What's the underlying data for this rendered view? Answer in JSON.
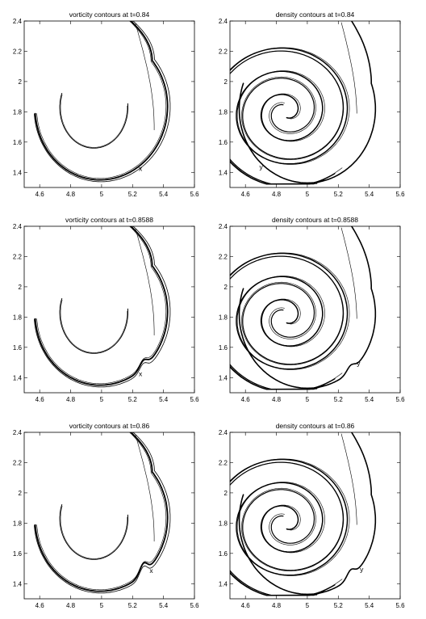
{
  "chart_data": [
    {
      "type": "line",
      "kind": "vorticity",
      "title": "vorticity contours at t=0.84",
      "xlim": [
        4.5,
        5.6
      ],
      "ylim": [
        1.3,
        2.4
      ],
      "xticks": [
        "4.6",
        "4.8",
        "5",
        "5.2",
        "5.4",
        "5.6"
      ],
      "yticks": [
        "1.4",
        "1.6",
        "1.8",
        "2",
        "2.2",
        "2.4"
      ],
      "marker": {
        "label": "x",
        "x": 5.24,
        "y": 1.41
      },
      "kink": 0
    },
    {
      "type": "line",
      "kind": "density",
      "title": "density contours at t=0.84",
      "xlim": [
        4.5,
        5.6
      ],
      "ylim": [
        1.3,
        2.4
      ],
      "xticks": [
        "4.6",
        "4.8",
        "5",
        "5.2",
        "5.4",
        "5.6"
      ],
      "yticks": [
        "1.4",
        "1.6",
        "1.8",
        "2",
        "2.2",
        "2.4"
      ],
      "marker": {
        "label": "y",
        "x": 4.69,
        "y": 1.42
      },
      "kink": 0
    },
    {
      "type": "line",
      "kind": "vorticity",
      "title": "vorticity contours at t=0.8588",
      "xlim": [
        4.5,
        5.6
      ],
      "ylim": [
        1.3,
        2.4
      ],
      "xticks": [
        "4.6",
        "4.8",
        "5",
        "5.2",
        "5.4",
        "5.6"
      ],
      "yticks": [
        "1.4",
        "1.6",
        "1.8",
        "2",
        "2.2",
        "2.4"
      ],
      "marker": {
        "label": "x",
        "x": 5.24,
        "y": 1.41
      },
      "kink": 1
    },
    {
      "type": "line",
      "kind": "density",
      "title": "density contours at t=0.8588",
      "xlim": [
        4.5,
        5.6
      ],
      "ylim": [
        1.3,
        2.4
      ],
      "xticks": [
        "4.6",
        "4.8",
        "5",
        "5.2",
        "5.4",
        "5.6"
      ],
      "yticks": [
        "1.4",
        "1.6",
        "1.8",
        "2",
        "2.2",
        "2.4"
      ],
      "marker": {
        "label": "y",
        "x": 5.32,
        "y": 1.48
      },
      "kink": 1
    },
    {
      "type": "line",
      "kind": "vorticity",
      "title": "vorticity contours at t=0.86",
      "xlim": [
        4.5,
        5.6
      ],
      "ylim": [
        1.3,
        2.4
      ],
      "xticks": [
        "4.6",
        "4.8",
        "5",
        "5.2",
        "5.4",
        "5.6"
      ],
      "yticks": [
        "1.4",
        "1.6",
        "1.8",
        "2",
        "2.2",
        "2.4"
      ],
      "marker": {
        "label": "x",
        "x": 5.31,
        "y": 1.47
      },
      "kink": 2
    },
    {
      "type": "line",
      "kind": "density",
      "title": "density contours at t=0.86",
      "xlim": [
        4.5,
        5.6
      ],
      "ylim": [
        1.3,
        2.4
      ],
      "xticks": [
        "4.6",
        "4.8",
        "5",
        "5.2",
        "5.4",
        "5.6"
      ],
      "yticks": [
        "1.4",
        "1.6",
        "1.8",
        "2",
        "2.2",
        "2.4"
      ],
      "marker": {
        "label": "y",
        "x": 5.34,
        "y": 1.48
      },
      "kink": 2
    }
  ]
}
